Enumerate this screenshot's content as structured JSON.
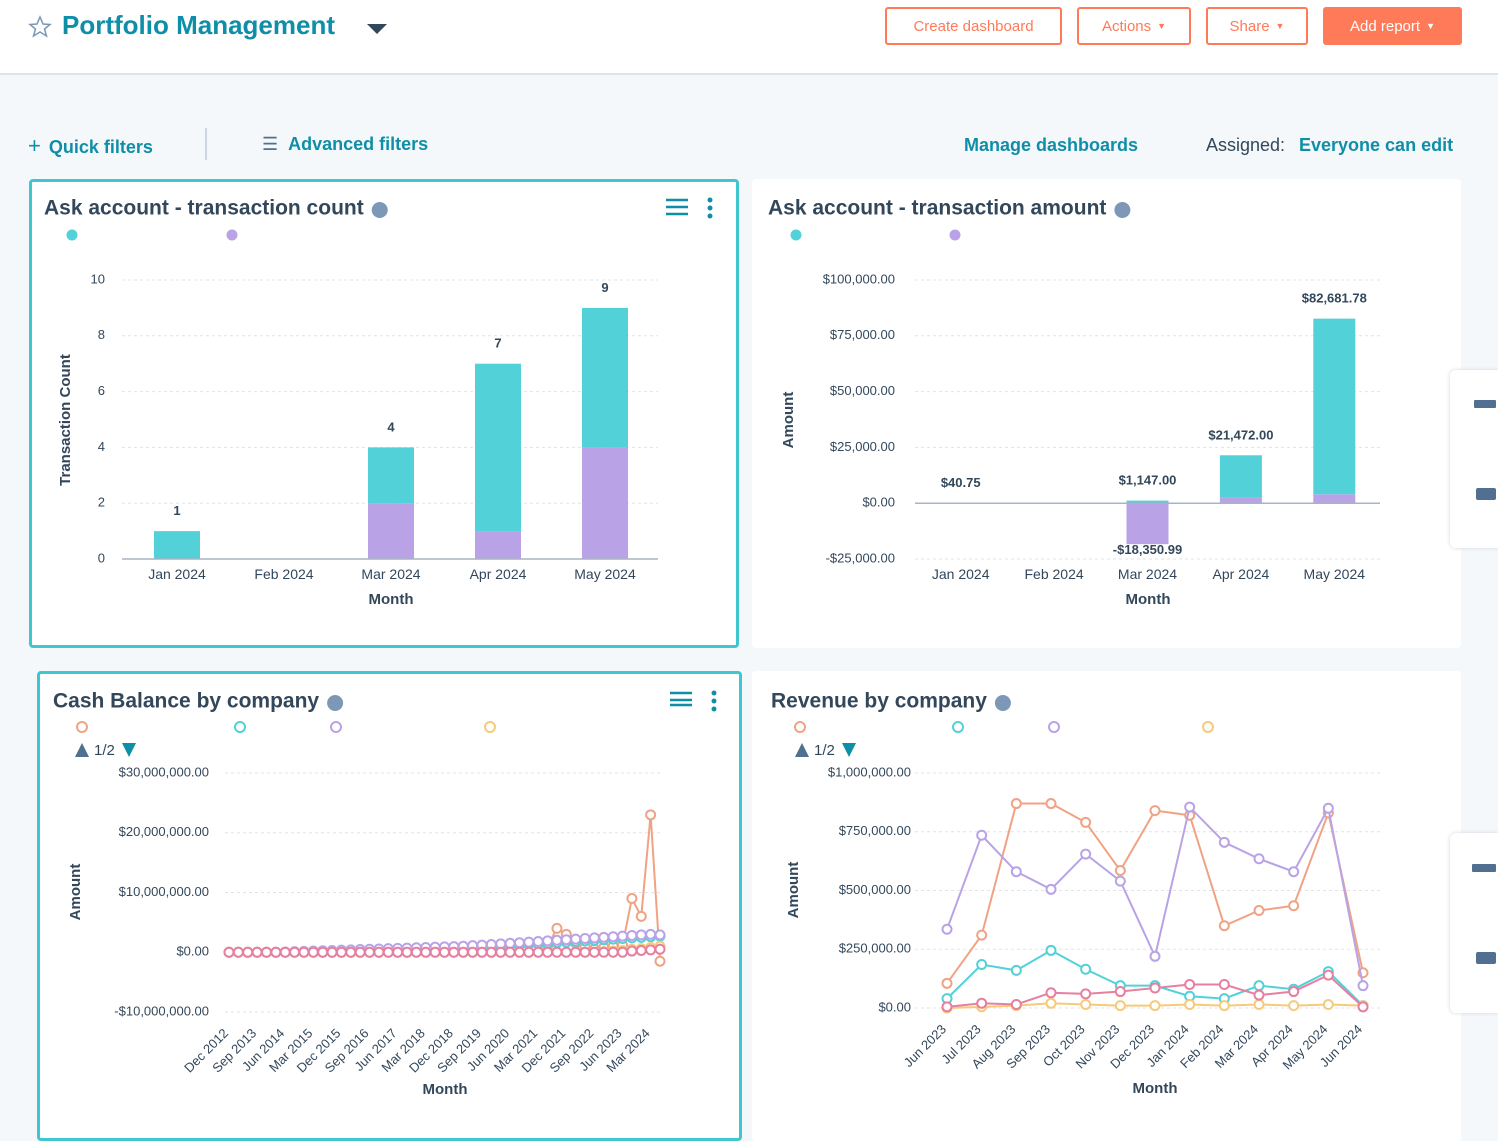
{
  "header": {
    "title": "Portfolio Management",
    "buttons": [
      "Create dashboard",
      "Actions",
      "Share",
      "Add report"
    ]
  },
  "filters": {
    "quick": "Quick filters",
    "advanced": "Advanced filters",
    "manage": "Manage dashboards",
    "assigned_label": "Assigned:",
    "assigned_value": "Everyone can edit"
  },
  "chart_data": [
    {
      "type": "bar",
      "stacked": true,
      "title": "Ask account - transaction count",
      "x_label": "Month",
      "y_label": "Transaction Count",
      "categories": [
        "Jan 2024",
        "Feb 2024",
        "Mar 2024",
        "Apr 2024",
        "May 2024"
      ],
      "series": [
        {
          "color": "#52d1d8",
          "values": [
            1,
            null,
            2,
            6,
            5
          ]
        },
        {
          "color": "#b9a3e6",
          "values": [
            null,
            null,
            2,
            1,
            4
          ]
        }
      ],
      "totals": [
        1,
        null,
        4,
        7,
        9
      ],
      "ylim": [
        0,
        10
      ],
      "yticks": [
        0,
        2,
        4,
        6,
        8,
        10
      ],
      "grid": true
    },
    {
      "type": "bar",
      "stacked": true,
      "title": "Ask account - transaction amount",
      "x_label": "Month",
      "y_label": "Amount",
      "categories": [
        "Jan 2024",
        "Feb 2024",
        "Mar 2024",
        "Apr 2024",
        "May 2024"
      ],
      "series": [
        {
          "color": "#52d1d8",
          "values": [
            40.75,
            null,
            1147,
            19000,
            78681.78
          ]
        },
        {
          "color": "#b9a3e6",
          "values": [
            null,
            null,
            -18350.99,
            2472,
            4000
          ]
        }
      ],
      "total_labels": [
        {
          "value": 40.75,
          "label": "$40.75"
        },
        null,
        {
          "value": 1147,
          "label": "$1,147.00"
        },
        {
          "value": 21472,
          "label": "$21,472.00"
        },
        {
          "value": 82681.78,
          "label": "$82,681.78"
        }
      ],
      "negative_total_labels": [
        null,
        null,
        {
          "value": -18350.99,
          "label": "-$18,350.99"
        },
        null,
        null
      ],
      "ylim": [
        -25000,
        100000
      ],
      "yticks": [
        {
          "value": -25000,
          "label": "-$25,000.00"
        },
        {
          "value": 0,
          "label": "$0.00"
        },
        {
          "value": 25000,
          "label": "$25,000.00"
        },
        {
          "value": 50000,
          "label": "$50,000.00"
        },
        {
          "value": 75000,
          "label": "$75,000.00"
        },
        {
          "value": 100000,
          "label": "$100,000.00"
        }
      ],
      "grid": true
    },
    {
      "type": "line",
      "title": "Cash Balance by company",
      "x_label": "Month",
      "y_label": "Amount",
      "legend_page": "1/2",
      "categories": [
        "Dec 2012",
        null,
        null,
        "Sep 2013",
        null,
        null,
        "Jun 2014",
        null,
        null,
        "Mar 2015",
        null,
        null,
        "Dec 2015",
        null,
        null,
        "Sep 2016",
        null,
        null,
        "Jun 2017",
        null,
        null,
        "Mar 2018",
        null,
        null,
        "Dec 2018",
        null,
        null,
        "Sep 2019",
        null,
        null,
        "Jun 2020",
        null,
        null,
        "Mar 2021",
        null,
        null,
        "Dec 2021",
        null,
        null,
        "Sep 2022",
        null,
        null,
        "Jun 2023",
        null,
        null,
        "Mar 2024",
        null
      ],
      "series": [
        {
          "color": "#f0a384",
          "values": [
            0,
            0,
            0,
            0,
            0,
            0,
            0,
            0,
            0,
            0,
            0,
            0,
            0,
            0,
            0,
            0,
            0,
            0,
            0,
            0,
            0,
            0,
            0,
            0,
            0,
            0,
            0,
            0,
            0,
            0,
            0,
            0,
            0,
            0,
            1000000,
            4000000,
            3000000,
            1500000,
            1000000,
            500000,
            800000,
            1000000,
            1200000,
            9000000,
            6000000,
            23000000,
            -1500000
          ]
        },
        {
          "color": "#52d1d8",
          "values": [
            0,
            0,
            0,
            0,
            0,
            0,
            0,
            0,
            0,
            0,
            0,
            0,
            0,
            0,
            0,
            0,
            0,
            0,
            0,
            0,
            100000,
            200000,
            300000,
            400000,
            500000,
            600000,
            700000,
            800000,
            900000,
            1000000,
            1100000,
            1200000,
            1300000,
            1400000,
            1500000,
            1600000,
            1700000,
            1800000,
            1900000,
            2000000,
            2100000,
            2200000,
            2300000,
            2400000,
            2500000,
            2600000,
            2700000
          ]
        },
        {
          "color": "#b9a3e6",
          "values": [
            0,
            0,
            0,
            0,
            0,
            0,
            50000,
            100000,
            150000,
            200000,
            250000,
            300000,
            350000,
            400000,
            450000,
            500000,
            550000,
            600000,
            650000,
            700000,
            750000,
            800000,
            850000,
            900000,
            950000,
            1000000,
            1100000,
            1200000,
            1300000,
            1400000,
            1500000,
            1600000,
            1700000,
            1800000,
            1900000,
            2000000,
            2100000,
            2200000,
            2300000,
            2400000,
            2500000,
            2600000,
            2700000,
            2800000,
            2900000,
            3000000,
            2900000
          ]
        },
        {
          "color": "#f5cb7a",
          "values": [
            0,
            0,
            0,
            0,
            0,
            0,
            0,
            0,
            0,
            0,
            0,
            0,
            0,
            0,
            0,
            0,
            0,
            0,
            0,
            0,
            0,
            0,
            0,
            0,
            0,
            0,
            0,
            0,
            0,
            0,
            0,
            0,
            0,
            0,
            0,
            0,
            0,
            0,
            0,
            0,
            100000,
            200000,
            300000,
            500000,
            600000,
            800000,
            1000000
          ]
        },
        {
          "color": "#e77fa1",
          "values": [
            0,
            0,
            0,
            0,
            0,
            0,
            0,
            0,
            0,
            0,
            0,
            0,
            0,
            0,
            0,
            0,
            0,
            0,
            0,
            0,
            0,
            0,
            0,
            0,
            0,
            0,
            0,
            0,
            0,
            0,
            0,
            0,
            0,
            0,
            0,
            0,
            0,
            0,
            0,
            0,
            0,
            0,
            0,
            200000,
            300000,
            400000,
            500000
          ]
        }
      ],
      "ylim": [
        -10000000,
        30000000
      ],
      "yticks": [
        {
          "value": -10000000,
          "label": "-$10,000,000.00"
        },
        {
          "value": 0,
          "label": "$0.00"
        },
        {
          "value": 10000000,
          "label": "$10,000,000.00"
        },
        {
          "value": 20000000,
          "label": "$20,000,000.00"
        },
        {
          "value": 30000000,
          "label": "$30,000,000.00"
        }
      ],
      "grid": true
    },
    {
      "type": "line",
      "title": "Revenue by company",
      "x_label": "Month",
      "y_label": "Amount",
      "legend_page": "1/2",
      "categories": [
        "Jun 2023",
        "Jul 2023",
        "Aug 2023",
        "Sep 2023",
        "Oct 2023",
        "Nov 2023",
        "Dec 2023",
        "Jan 2024",
        "Feb 2024",
        "Mar 2024",
        "Apr 2024",
        "May 2024",
        "Jun 2024"
      ],
      "series": [
        {
          "color": "#f0a384",
          "values": [
            105000,
            310000,
            870000,
            870000,
            790000,
            585000,
            840000,
            820000,
            350000,
            415000,
            435000,
            830000,
            150000
          ]
        },
        {
          "color": "#52d1d8",
          "values": [
            40000,
            185000,
            160000,
            245000,
            165000,
            95000,
            95000,
            50000,
            40000,
            95000,
            80000,
            155000,
            10000
          ]
        },
        {
          "color": "#b9a3e6",
          "values": [
            335000,
            735000,
            580000,
            505000,
            655000,
            540000,
            220000,
            855000,
            705000,
            635000,
            580000,
            850000,
            95000
          ]
        },
        {
          "color": "#f5cb7a",
          "values": [
            0,
            5000,
            10000,
            20000,
            15000,
            10000,
            10000,
            15000,
            10000,
            15000,
            10000,
            15000,
            10000
          ]
        },
        {
          "color": "#e77fa1",
          "values": [
            5000,
            20000,
            15000,
            65000,
            60000,
            70000,
            85000,
            100000,
            100000,
            55000,
            70000,
            140000,
            5000
          ]
        }
      ],
      "ylim": [
        0,
        1000000
      ],
      "yticks": [
        {
          "value": 0,
          "label": "$0.00"
        },
        {
          "value": 250000,
          "label": "$250,000.00"
        },
        {
          "value": 500000,
          "label": "$500,000.00"
        },
        {
          "value": 750000,
          "label": "$750,000.00"
        },
        {
          "value": 1000000,
          "label": "$1,000,000.00"
        }
      ],
      "grid": true
    }
  ]
}
